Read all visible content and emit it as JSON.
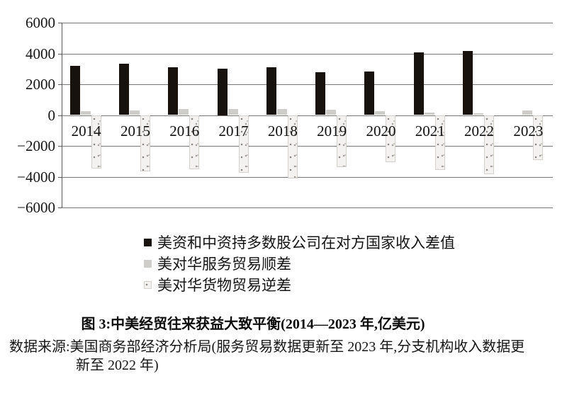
{
  "chart_data": {
    "type": "bar",
    "title": "图 3:中美经贸往来获益大致平衡(2014—2023 年,亿美元)",
    "xlabel": "",
    "ylabel": "",
    "unit": "亿美元",
    "ylim": [
      -6000,
      6000
    ],
    "yticks": [
      6000,
      4000,
      2000,
      0,
      -2000,
      -4000,
      -6000
    ],
    "ytick_labels": [
      "6000",
      "4000",
      "2000",
      "0",
      "−2000",
      "−4000",
      "−6000"
    ],
    "grid": true,
    "legend_position": "bottom-left",
    "categories": [
      "2014",
      "2015",
      "2016",
      "2017",
      "2018",
      "2019",
      "2020",
      "2021",
      "2022",
      "2023"
    ],
    "series": [
      {
        "name": "美资和中资持多数股公司在对方国家收入差值",
        "key": "income-diff",
        "style": "solid-black",
        "color": "#18120e",
        "values": [
          3200,
          3350,
          3100,
          3000,
          3100,
          2800,
          2850,
          4050,
          4150,
          null
        ]
      },
      {
        "name": "美对华服务贸易顺差",
        "key": "services-surplus",
        "style": "solid-gray",
        "color": "#cfcdca",
        "values": [
          270,
          300,
          380,
          390,
          385,
          355,
          235,
          150,
          120,
          280
        ]
      },
      {
        "name": "美对华货物贸易逆差",
        "key": "goods-deficit",
        "style": "speckle",
        "color": "#f3f2f0",
        "values": [
          -3450,
          -3650,
          -3500,
          -3730,
          -4100,
          -3400,
          -3050,
          -3550,
          -3850,
          -2900
        ]
      }
    ]
  },
  "legend": {
    "items": [
      {
        "label": "美资和中资持多数股公司在对方国家收入差值",
        "swatch": "solid-black",
        "key": "income-diff"
      },
      {
        "label": "美对华服务贸易顺差",
        "swatch": "solid-gray",
        "key": "services-surplus"
      },
      {
        "label": "美对华货物贸易逆差",
        "swatch": "speckle",
        "key": "goods-deficit"
      }
    ]
  },
  "caption": {
    "title": "图 3:中美经贸往来获益大致平衡(2014—2023 年,亿美元)"
  },
  "source": {
    "line1": "数据来源:美国商务部经济分析局(服务贸易数据更新至 2023 年,分支机构收入数据更",
    "line2": "新至 2022 年)"
  }
}
